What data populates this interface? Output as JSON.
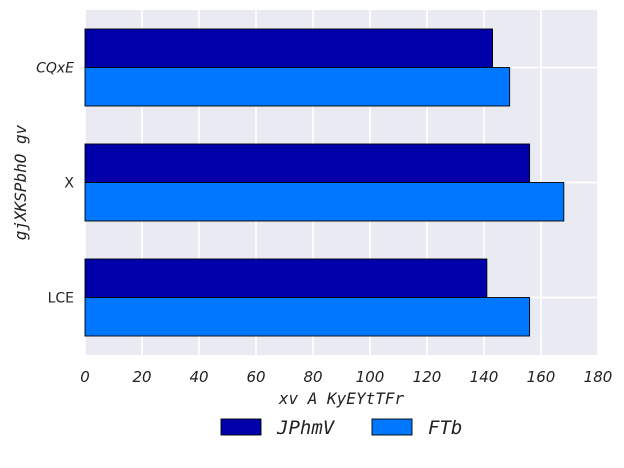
{
  "chart_data": {
    "type": "bar",
    "orientation": "horizontal",
    "categories": [
      "CQxE",
      "X",
      "LCE"
    ],
    "category_label_italic": [
      true,
      false,
      false
    ],
    "series": [
      {
        "name": "JPhmV",
        "values": [
          143,
          156,
          141
        ],
        "color": "#0000AA"
      },
      {
        "name": "FTb",
        "values": [
          149,
          168,
          156
        ],
        "color": "#0077FF"
      }
    ],
    "xlabel": "xv A KyEYtTFr",
    "ylabel": "gjXKSPbhO gv",
    "xlim": [
      0,
      180
    ],
    "xticks": [
      0,
      20,
      40,
      60,
      80,
      100,
      120,
      140,
      160,
      180
    ],
    "grid": true,
    "legend_position": "bottom-center",
    "background_color": "#EAEAF2",
    "grid_color": "#FFFFFF"
  }
}
